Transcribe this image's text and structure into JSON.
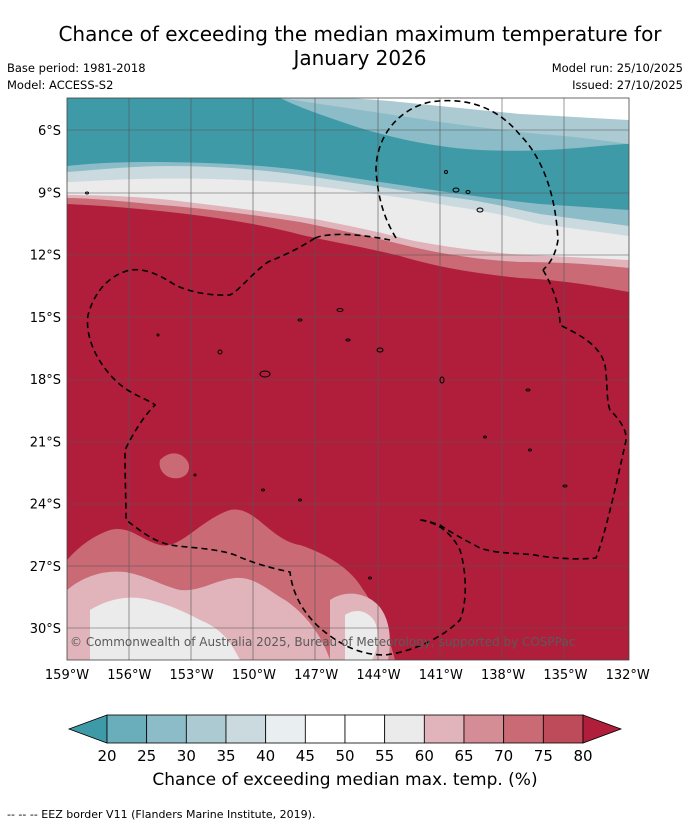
{
  "header": {
    "title_line1": "Chance of exceeding the median maximum temperature for",
    "title_line2": "January 2026",
    "base_period": "Base period: 1981-2018",
    "model": "Model: ACCESS-S2",
    "model_run": "Model run: 25/10/2025",
    "issued": "Issued: 27/10/2025"
  },
  "map": {
    "lat_labels": [
      "6°S",
      "9°S",
      "12°S",
      "15°S",
      "18°S",
      "21°S",
      "24°S",
      "27°S",
      "30°S"
    ],
    "lon_labels": [
      "159°W",
      "156°W",
      "153°W",
      "150°W",
      "147°W",
      "144°W",
      "141°W",
      "138°W",
      "135°W",
      "132°W"
    ],
    "copyright": "© Commonwealth of Australia 2025, Bureau of Meteorology, supported by COSPPac"
  },
  "colorbar": {
    "ticks": [
      "20",
      "25",
      "30",
      "35",
      "40",
      "45",
      "50",
      "55",
      "60",
      "65",
      "70",
      "75",
      "80"
    ],
    "colors": [
      "#3f9aa8",
      "#6aaebb",
      "#8bbcc8",
      "#abcad1",
      "#cbdade",
      "#e9eef0",
      "#ffffff",
      "#ffffff",
      "#ebebeb",
      "#e0b4ba",
      "#d48c95",
      "#c96a75",
      "#bd4b59",
      "#b01e3b"
    ],
    "title": "Chance of exceeding median max. temp. (%)"
  },
  "legend": {
    "text": "-- -- -- EEZ border V11 (Flanders Marine Institute, 2019)."
  }
}
